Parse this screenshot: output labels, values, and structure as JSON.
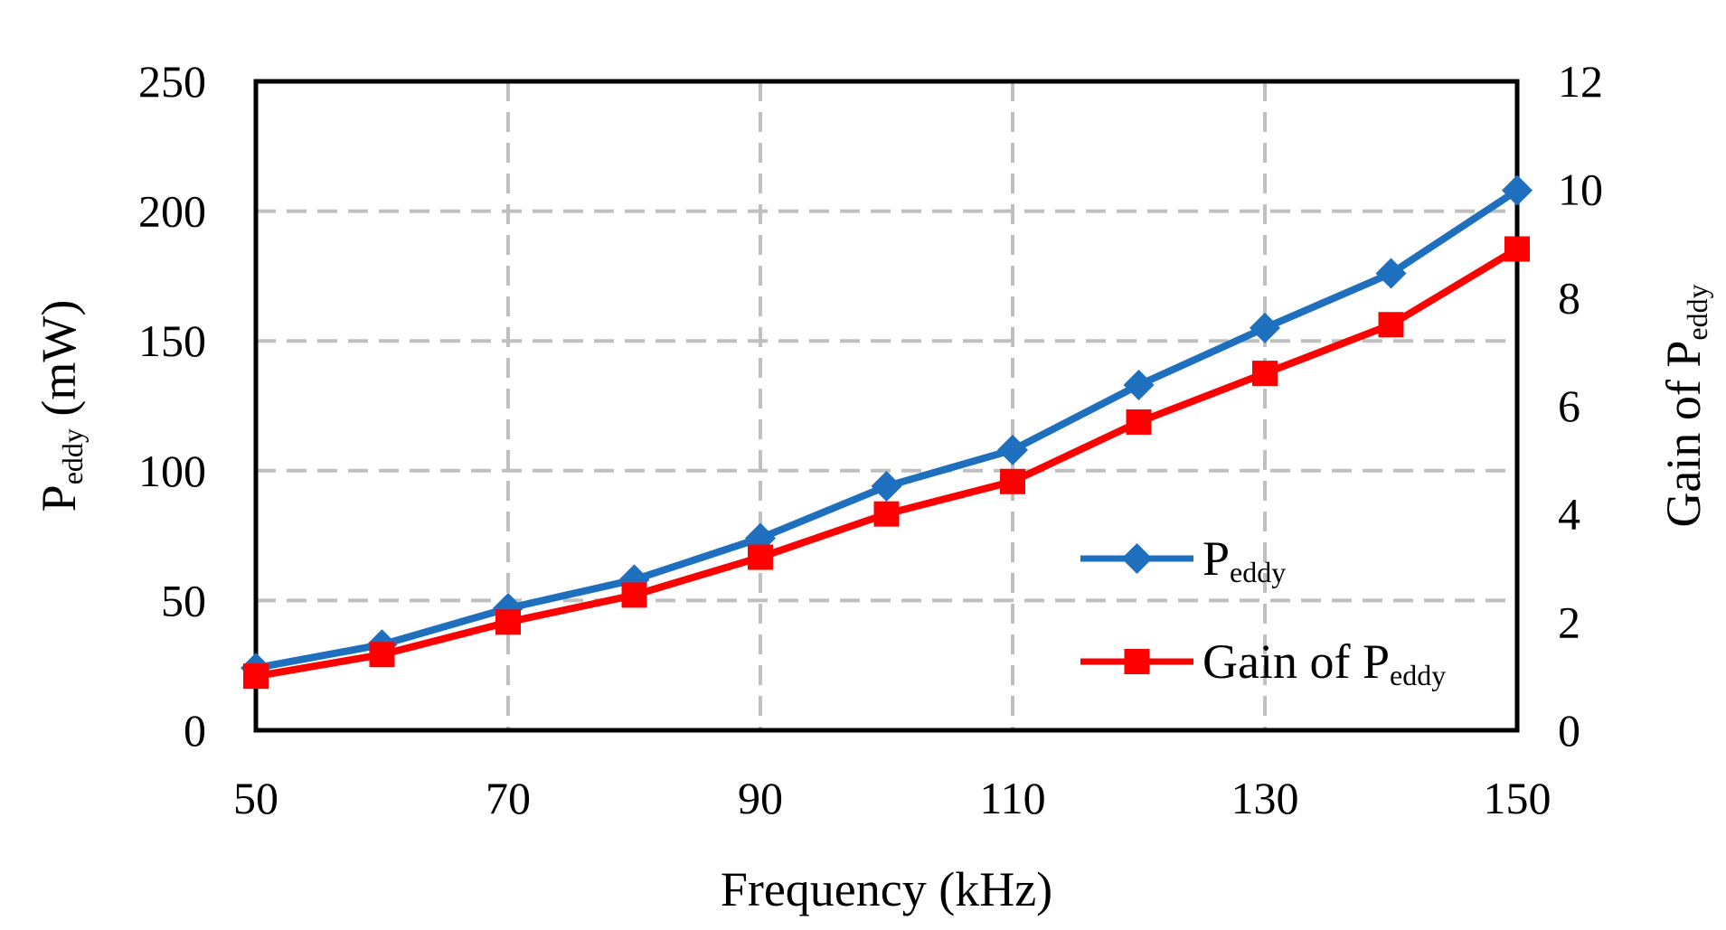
{
  "chart_data": {
    "type": "line",
    "title": "",
    "x": [
      50,
      60,
      70,
      80,
      90,
      100,
      110,
      120,
      130,
      140,
      150
    ],
    "x_ticks": [
      "50",
      "70",
      "90",
      "110",
      "130",
      "150"
    ],
    "xlim": [
      50,
      150
    ],
    "xlabel": "Frequency (kHz)",
    "y_left": {
      "label_main": "P",
      "label_sub": "eddy",
      "label_unit": " (mW)",
      "lim": [
        0,
        250
      ],
      "ticks": [
        "0",
        "50",
        "100",
        "150",
        "200",
        "250"
      ]
    },
    "y_right": {
      "label_main": "Gain of P",
      "label_sub": "eddy",
      "lim": [
        0,
        12
      ],
      "ticks": [
        "0",
        "2",
        "4",
        "6",
        "8",
        "10",
        "12"
      ]
    },
    "grid": true,
    "legend_position": "bottom-right",
    "series": [
      {
        "name": "P",
        "name_sub": "eddy",
        "axis": "left",
        "marker": "diamond",
        "color": "#1f6fbf",
        "values": [
          24,
          33,
          47,
          58,
          74,
          94,
          108,
          133,
          155,
          176,
          208
        ]
      },
      {
        "name": "Gain of P",
        "name_sub": "eddy",
        "axis": "right",
        "marker": "square",
        "color": "#ff0000",
        "values": [
          1.0,
          1.4,
          2.0,
          2.5,
          3.2,
          4.0,
          4.6,
          5.7,
          6.6,
          7.5,
          8.9
        ]
      }
    ]
  }
}
